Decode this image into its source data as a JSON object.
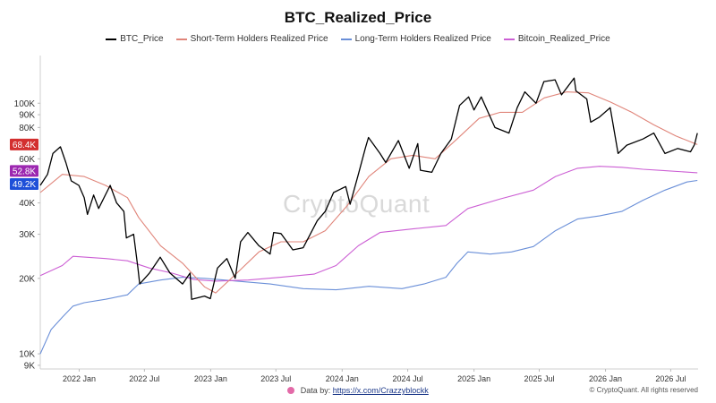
{
  "chart_data": {
    "type": "line",
    "title": "BTC_Realized_Price",
    "yscale": "log",
    "ylim": [
      8700,
      155000
    ],
    "xlim": [
      "2021-09-15",
      "2026-09-15"
    ],
    "y_ticks": [
      {
        "v": 9000,
        "label": "9K"
      },
      {
        "v": 10000,
        "label": "10K"
      },
      {
        "v": 20000,
        "label": "20K"
      },
      {
        "v": 30000,
        "label": "30K"
      },
      {
        "v": 40000,
        "label": "40K"
      },
      {
        "v": 60000,
        "label": "60K"
      },
      {
        "v": 80000,
        "label": "80K"
      },
      {
        "v": 90000,
        "label": "90K"
      },
      {
        "v": 100000,
        "label": "100K"
      }
    ],
    "x_ticks": [
      {
        "date": "2022-01-01",
        "label": "2022 Jan"
      },
      {
        "date": "2022-07-01",
        "label": "2022 Jul"
      },
      {
        "date": "2023-01-01",
        "label": "2023 Jan"
      },
      {
        "date": "2023-07-01",
        "label": "2023 Jul"
      },
      {
        "date": "2024-01-01",
        "label": "2024 Jan"
      },
      {
        "date": "2024-07-01",
        "label": "2024 Jul"
      },
      {
        "date": "2025-01-01",
        "label": "2025 Jan"
      },
      {
        "date": "2025-07-01",
        "label": "2025 Jul"
      },
      {
        "date": "2026-01-01",
        "label": "2026 Jan"
      },
      {
        "date": "2026-07-01",
        "label": "2026 Jul"
      }
    ],
    "last_value_labels": [
      {
        "label": "68.4K",
        "value": 68400,
        "color": "#d32f2f"
      },
      {
        "label": "52.8K",
        "value": 52800,
        "color": "#9c27b0"
      },
      {
        "label": "49.2K",
        "value": 49200,
        "color": "#1e4fd8"
      }
    ],
    "series": [
      {
        "name": "BTC_Price",
        "color": "#000000",
        "points": [
          [
            "2021-09-15",
            47000
          ],
          [
            "2021-10-05",
            52000
          ],
          [
            "2021-10-20",
            63000
          ],
          [
            "2021-11-10",
            67000
          ],
          [
            "2021-11-25",
            58000
          ],
          [
            "2021-12-10",
            49000
          ],
          [
            "2021-12-31",
            47000
          ],
          [
            "2022-01-15",
            42000
          ],
          [
            "2022-01-24",
            36000
          ],
          [
            "2022-02-10",
            43000
          ],
          [
            "2022-02-24",
            38000
          ],
          [
            "2022-03-28",
            47000
          ],
          [
            "2022-04-15",
            40000
          ],
          [
            "2022-05-05",
            37000
          ],
          [
            "2022-05-12",
            29000
          ],
          [
            "2022-06-01",
            30000
          ],
          [
            "2022-06-13",
            22000
          ],
          [
            "2022-06-18",
            19000
          ],
          [
            "2022-07-15",
            21000
          ],
          [
            "2022-08-14",
            24300
          ],
          [
            "2022-09-10",
            21000
          ],
          [
            "2022-10-15",
            19000
          ],
          [
            "2022-11-05",
            21000
          ],
          [
            "2022-11-09",
            16500
          ],
          [
            "2022-12-15",
            17000
          ],
          [
            "2022-12-31",
            16600
          ],
          [
            "2023-01-20",
            22000
          ],
          [
            "2023-02-15",
            24000
          ],
          [
            "2023-03-10",
            20000
          ],
          [
            "2023-03-25",
            28000
          ],
          [
            "2023-04-14",
            30500
          ],
          [
            "2023-05-15",
            27000
          ],
          [
            "2023-06-15",
            25000
          ],
          [
            "2023-06-25",
            30500
          ],
          [
            "2023-07-15",
            30200
          ],
          [
            "2023-08-17",
            26000
          ],
          [
            "2023-09-15",
            26500
          ],
          [
            "2023-10-24",
            34000
          ],
          [
            "2023-11-15",
            37000
          ],
          [
            "2023-12-08",
            44000
          ],
          [
            "2024-01-11",
            46500
          ],
          [
            "2024-01-23",
            39500
          ],
          [
            "2024-02-15",
            52000
          ],
          [
            "2024-03-05",
            66000
          ],
          [
            "2024-03-14",
            73000
          ],
          [
            "2024-04-15",
            63000
          ],
          [
            "2024-05-01",
            58000
          ],
          [
            "2024-06-05",
            71000
          ],
          [
            "2024-07-05",
            55000
          ],
          [
            "2024-07-29",
            69000
          ],
          [
            "2024-08-05",
            54000
          ],
          [
            "2024-09-06",
            53000
          ],
          [
            "2024-10-01",
            63000
          ],
          [
            "2024-10-30",
            72000
          ],
          [
            "2024-11-22",
            98000
          ],
          [
            "2024-12-17",
            106000
          ],
          [
            "2025-01-01",
            94000
          ],
          [
            "2025-01-21",
            106000
          ],
          [
            "2025-02-28",
            80000
          ],
          [
            "2025-04-08",
            76000
          ],
          [
            "2025-05-01",
            96000
          ],
          [
            "2025-05-22",
            111000
          ],
          [
            "2025-06-22",
            100000
          ],
          [
            "2025-07-14",
            122000
          ],
          [
            "2025-08-14",
            124000
          ],
          [
            "2025-09-01",
            108000
          ],
          [
            "2025-10-06",
            126000
          ],
          [
            "2025-10-11",
            112000
          ],
          [
            "2025-11-10",
            104000
          ],
          [
            "2025-11-21",
            84000
          ],
          [
            "2025-12-15",
            88000
          ],
          [
            "2026-01-14",
            96000
          ],
          [
            "2026-02-05",
            63000
          ],
          [
            "2026-03-01",
            68000
          ],
          [
            "2026-04-15",
            72000
          ],
          [
            "2026-05-15",
            76000
          ],
          [
            "2026-06-15",
            63000
          ],
          [
            "2026-07-20",
            66000
          ],
          [
            "2026-08-25",
            64000
          ],
          [
            "2026-09-05",
            68400
          ],
          [
            "2026-09-13",
            76000
          ]
        ]
      },
      {
        "name": "Short-Term Holders Realized Price",
        "color": "#e0857a",
        "points": [
          [
            "2021-09-15",
            44000
          ],
          [
            "2021-11-15",
            52000
          ],
          [
            "2022-01-15",
            51000
          ],
          [
            "2022-03-15",
            47000
          ],
          [
            "2022-05-15",
            42000
          ],
          [
            "2022-06-15",
            35000
          ],
          [
            "2022-08-15",
            27000
          ],
          [
            "2022-10-15",
            23000
          ],
          [
            "2022-12-15",
            18500
          ],
          [
            "2023-01-15",
            17500
          ],
          [
            "2023-03-15",
            21000
          ],
          [
            "2023-05-15",
            25500
          ],
          [
            "2023-07-15",
            28000
          ],
          [
            "2023-09-15",
            28000
          ],
          [
            "2023-11-15",
            31000
          ],
          [
            "2024-01-15",
            39000
          ],
          [
            "2024-03-15",
            51000
          ],
          [
            "2024-05-15",
            60000
          ],
          [
            "2024-07-15",
            62000
          ],
          [
            "2024-09-15",
            60000
          ],
          [
            "2024-11-15",
            72000
          ],
          [
            "2025-01-15",
            87000
          ],
          [
            "2025-03-15",
            92000
          ],
          [
            "2025-05-15",
            92000
          ],
          [
            "2025-07-15",
            105000
          ],
          [
            "2025-09-15",
            111000
          ],
          [
            "2025-11-15",
            110000
          ],
          [
            "2026-01-15",
            101000
          ],
          [
            "2026-03-15",
            92000
          ],
          [
            "2026-05-15",
            82000
          ],
          [
            "2026-07-15",
            74000
          ],
          [
            "2026-09-13",
            68400
          ]
        ]
      },
      {
        "name": "Long-Term Holders Realized Price",
        "color": "#6a8fd8",
        "points": [
          [
            "2021-09-15",
            10000
          ],
          [
            "2021-10-15",
            12500
          ],
          [
            "2021-11-15",
            14000
          ],
          [
            "2021-12-15",
            15500
          ],
          [
            "2022-01-15",
            16000
          ],
          [
            "2022-03-15",
            16500
          ],
          [
            "2022-05-15",
            17200
          ],
          [
            "2022-06-15",
            19000
          ],
          [
            "2022-08-15",
            19700
          ],
          [
            "2022-10-15",
            20200
          ],
          [
            "2022-12-15",
            20000
          ],
          [
            "2023-03-15",
            19500
          ],
          [
            "2023-06-15",
            19000
          ],
          [
            "2023-09-15",
            18200
          ],
          [
            "2023-12-15",
            18000
          ],
          [
            "2024-03-15",
            18600
          ],
          [
            "2024-06-15",
            18200
          ],
          [
            "2024-08-15",
            19000
          ],
          [
            "2024-10-15",
            20200
          ],
          [
            "2024-11-15",
            23000
          ],
          [
            "2024-12-15",
            25500
          ],
          [
            "2025-02-15",
            25000
          ],
          [
            "2025-04-15",
            25500
          ],
          [
            "2025-06-15",
            26800
          ],
          [
            "2025-08-15",
            31000
          ],
          [
            "2025-10-15",
            34500
          ],
          [
            "2025-12-15",
            35500
          ],
          [
            "2026-02-15",
            37000
          ],
          [
            "2026-04-15",
            41000
          ],
          [
            "2026-06-15",
            45000
          ],
          [
            "2026-08-15",
            48500
          ],
          [
            "2026-09-13",
            49200
          ]
        ]
      },
      {
        "name": "Bitcoin_Realized_Price",
        "color": "#cc5fd4",
        "points": [
          [
            "2021-09-15",
            20500
          ],
          [
            "2021-11-15",
            22500
          ],
          [
            "2021-12-15",
            24500
          ],
          [
            "2022-03-15",
            24000
          ],
          [
            "2022-05-15",
            23500
          ],
          [
            "2022-07-15",
            22000
          ],
          [
            "2022-09-15",
            21000
          ],
          [
            "2022-11-15",
            19800
          ],
          [
            "2023-01-15",
            19500
          ],
          [
            "2023-04-15",
            19700
          ],
          [
            "2023-07-15",
            20200
          ],
          [
            "2023-10-15",
            20800
          ],
          [
            "2023-12-15",
            22500
          ],
          [
            "2024-02-15",
            27000
          ],
          [
            "2024-04-15",
            30500
          ],
          [
            "2024-07-15",
            31500
          ],
          [
            "2024-10-15",
            32500
          ],
          [
            "2024-12-15",
            38000
          ],
          [
            "2025-03-15",
            41500
          ],
          [
            "2025-06-15",
            45000
          ],
          [
            "2025-08-15",
            51000
          ],
          [
            "2025-10-15",
            55000
          ],
          [
            "2025-12-15",
            56000
          ],
          [
            "2026-02-15",
            55500
          ],
          [
            "2026-04-15",
            54500
          ],
          [
            "2026-06-15",
            53800
          ],
          [
            "2026-09-13",
            52800
          ]
        ]
      }
    ]
  },
  "legend": [
    {
      "label": "BTC_Price",
      "color": "#000000"
    },
    {
      "label": "Short-Term Holders Realized Price",
      "color": "#e0857a"
    },
    {
      "label": "Long-Term Holders Realized Price",
      "color": "#6a8fd8"
    },
    {
      "label": "Bitcoin_Realized_Price",
      "color": "#cc5fd4"
    }
  ],
  "watermark": "CryptoQuant",
  "footer": {
    "source_prefix": "Data by:",
    "source_link": "https://x.com/Crazzyblockk",
    "copyright": "© CryptoQuant. All rights reserved"
  }
}
